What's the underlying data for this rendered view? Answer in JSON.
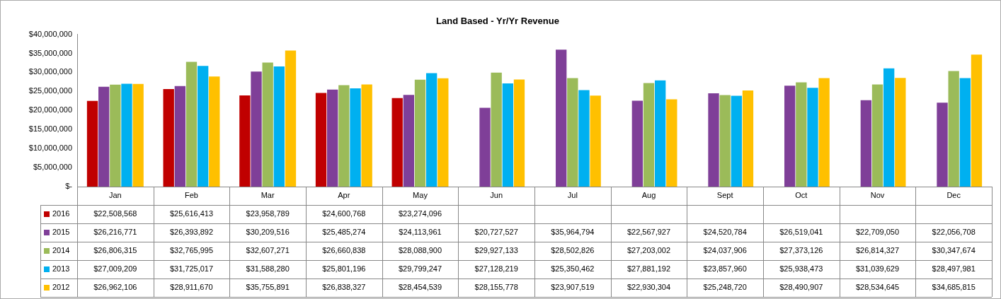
{
  "chart_data": {
    "type": "bar",
    "title": "Land Based - Yr/Yr Revenue",
    "categories": [
      "Jan",
      "Feb",
      "Mar",
      "Apr",
      "May",
      "Jun",
      "Jul",
      "Aug",
      "Sept",
      "Oct",
      "Nov",
      "Dec"
    ],
    "series": [
      {
        "name": "2016",
        "color": "#c00000",
        "values": [
          22508568,
          25616413,
          23958789,
          24600768,
          23274096,
          null,
          null,
          null,
          null,
          null,
          null,
          null
        ],
        "value_labels": [
          "$22,508,568",
          "$25,616,413",
          "$23,958,789",
          "$24,600,768",
          "$23,274,096",
          null,
          null,
          null,
          null,
          null,
          null,
          null
        ]
      },
      {
        "name": "2015",
        "color": "#7f3f98",
        "values": [
          26216771,
          26393892,
          30209516,
          25485274,
          24113961,
          20727527,
          35964794,
          22567927,
          24520784,
          26519041,
          22709050,
          22056708
        ],
        "value_labels": [
          "$26,216,771",
          "$26,393,892",
          "$30,209,516",
          "$25,485,274",
          "$24,113,961",
          "$20,727,527",
          "$35,964,794",
          "$22,567,927",
          "$24,520,784",
          "$26,519,041",
          "$22,709,050",
          "$22,056,708"
        ]
      },
      {
        "name": "2014",
        "color": "#9bbb59",
        "values": [
          26806315,
          32765995,
          32607271,
          26660838,
          28088900,
          29927133,
          28502826,
          27203002,
          24037906,
          27373126,
          26814327,
          30347674
        ],
        "value_labels": [
          "$26,806,315",
          "$32,765,995",
          "$32,607,271",
          "$26,660,838",
          "$28,088,900",
          "$29,927,133",
          "$28,502,826",
          "$27,203,002",
          "$24,037,906",
          "$27,373,126",
          "$26,814,327",
          "$30,347,674"
        ]
      },
      {
        "name": "2013",
        "color": "#00b0f0",
        "values": [
          27009209,
          31725017,
          31588280,
          25801196,
          29799247,
          27128219,
          25350462,
          27881192,
          23857960,
          25938473,
          31039629,
          28497981
        ],
        "value_labels": [
          "$27,009,209",
          "$31,725,017",
          "$31,588,280",
          "$25,801,196",
          "$29,799,247",
          "$27,128,219",
          "$25,350,462",
          "$27,881,192",
          "$23,857,960",
          "$25,938,473",
          "$31,039,629",
          "$28,497,981"
        ]
      },
      {
        "name": "2012",
        "color": "#ffc000",
        "values": [
          26962106,
          28911670,
          35755891,
          26838327,
          28454539,
          28155778,
          23907519,
          22930304,
          25248720,
          28490907,
          28534645,
          34685815
        ],
        "value_labels": [
          "$26,962,106",
          "$28,911,670",
          "$35,755,891",
          "$26,838,327",
          "$28,454,539",
          "$28,155,778",
          "$23,907,519",
          "$22,930,304",
          "$25,248,720",
          "$28,490,907",
          "$28,534,645",
          "$34,685,815"
        ]
      }
    ],
    "ylim": [
      0,
      40000000
    ],
    "yticks": [
      {
        "value": 0,
        "label": "$-"
      },
      {
        "value": 5000000,
        "label": "$5,000,000"
      },
      {
        "value": 10000000,
        "label": "$10,000,000"
      },
      {
        "value": 15000000,
        "label": "$15,000,000"
      },
      {
        "value": 20000000,
        "label": "$20,000,000"
      },
      {
        "value": 25000000,
        "label": "$25,000,000"
      },
      {
        "value": 30000000,
        "label": "$30,000,000"
      },
      {
        "value": 35000000,
        "label": "$35,000,000"
      },
      {
        "value": 40000000,
        "label": "$40,000,000"
      }
    ],
    "grid": false,
    "legend": "left"
  }
}
